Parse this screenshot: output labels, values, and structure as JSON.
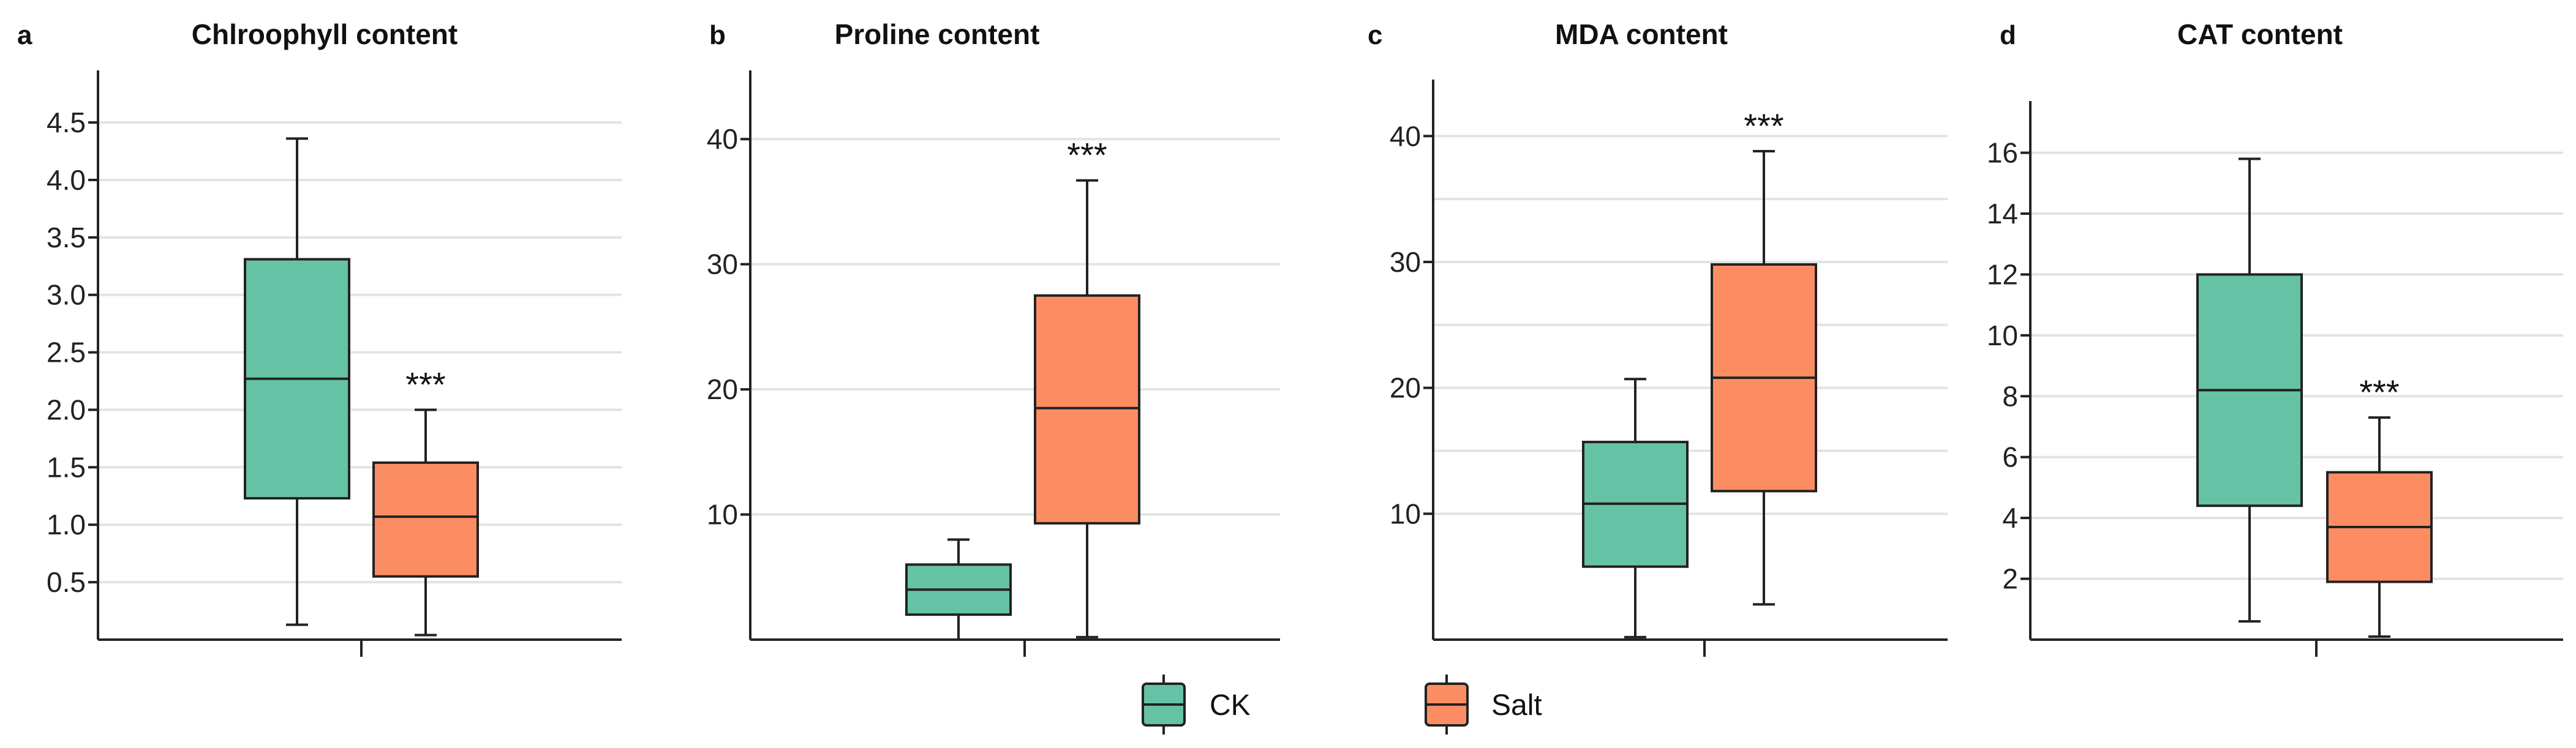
{
  "colors": {
    "ck": "#66c2a5",
    "salt": "#fc8d62",
    "axis": "#222222",
    "grid": "#e3e3e3"
  },
  "legend": {
    "items": [
      {
        "label": "CK",
        "color": "#66c2a5"
      },
      {
        "label": "Salt",
        "color": "#fc8d62"
      }
    ]
  },
  "chart_data": [
    {
      "type": "box",
      "panel": "a",
      "title": "Chlroophyll content",
      "ylim": [
        0,
        4.9
      ],
      "yticks": [
        0.5,
        1.0,
        1.5,
        2.0,
        2.5,
        3.0,
        3.5,
        4.0,
        4.5
      ],
      "ytick_labels": [
        "0.5",
        "1.0",
        "1.5",
        "2.0",
        "2.5",
        "3.0",
        "3.5",
        "4.0",
        "4.5"
      ],
      "grid_minor": [],
      "series": [
        {
          "name": "CK",
          "whisker_low": 0.13,
          "q1": 1.23,
          "median": 2.27,
          "q3": 3.31,
          "whisker_high": 4.36
        },
        {
          "name": "Salt",
          "whisker_low": 0.04,
          "q1": 0.55,
          "median": 1.07,
          "q3": 1.54,
          "whisker_high": 2.0
        }
      ],
      "significance": {
        "label": "***",
        "series": "Salt"
      }
    },
    {
      "type": "box",
      "panel": "b",
      "title": "Proline content",
      "ylim": [
        0,
        45
      ],
      "yticks": [
        10,
        20,
        30,
        40
      ],
      "ytick_labels": [
        "10",
        "20",
        "30",
        "40"
      ],
      "grid_minor": [],
      "series": [
        {
          "name": "CK",
          "whisker_low": 0.0,
          "q1": 2.0,
          "median": 4.0,
          "q3": 6.0,
          "whisker_high": 8.0
        },
        {
          "name": "Salt",
          "whisker_low": 0.2,
          "q1": 9.3,
          "median": 18.5,
          "q3": 27.5,
          "whisker_high": 36.7
        }
      ],
      "significance": {
        "label": "***",
        "series": "Salt"
      }
    },
    {
      "type": "box",
      "panel": "c",
      "title": "MDA content",
      "ylim": [
        0,
        44
      ],
      "yticks": [
        10,
        20,
        30,
        40
      ],
      "ytick_labels": [
        "10",
        "20",
        "30",
        "40"
      ],
      "grid_minor": [
        15,
        25,
        35
      ],
      "series": [
        {
          "name": "CK",
          "whisker_low": 0.2,
          "q1": 5.8,
          "median": 10.8,
          "q3": 15.7,
          "whisker_high": 20.7
        },
        {
          "name": "Salt",
          "whisker_low": 2.8,
          "q1": 11.8,
          "median": 20.8,
          "q3": 29.8,
          "whisker_high": 38.8
        }
      ],
      "significance": {
        "label": "***",
        "series": "Salt"
      }
    },
    {
      "type": "box",
      "panel": "d",
      "title": "CAT content",
      "ylim": [
        0,
        17.5
      ],
      "yticks": [
        2,
        4,
        6,
        8,
        10,
        12,
        14,
        16
      ],
      "ytick_labels": [
        "2",
        "4",
        "6",
        "8",
        "10",
        "12",
        "14",
        "16"
      ],
      "grid_minor": [],
      "series": [
        {
          "name": "CK",
          "whisker_low": 0.6,
          "q1": 4.4,
          "median": 8.2,
          "q3": 12.0,
          "whisker_high": 15.8
        },
        {
          "name": "Salt",
          "whisker_low": 0.1,
          "q1": 1.9,
          "median": 3.7,
          "q3": 5.5,
          "whisker_high": 7.3
        }
      ],
      "significance": {
        "label": "***",
        "series": "Salt"
      }
    }
  ]
}
